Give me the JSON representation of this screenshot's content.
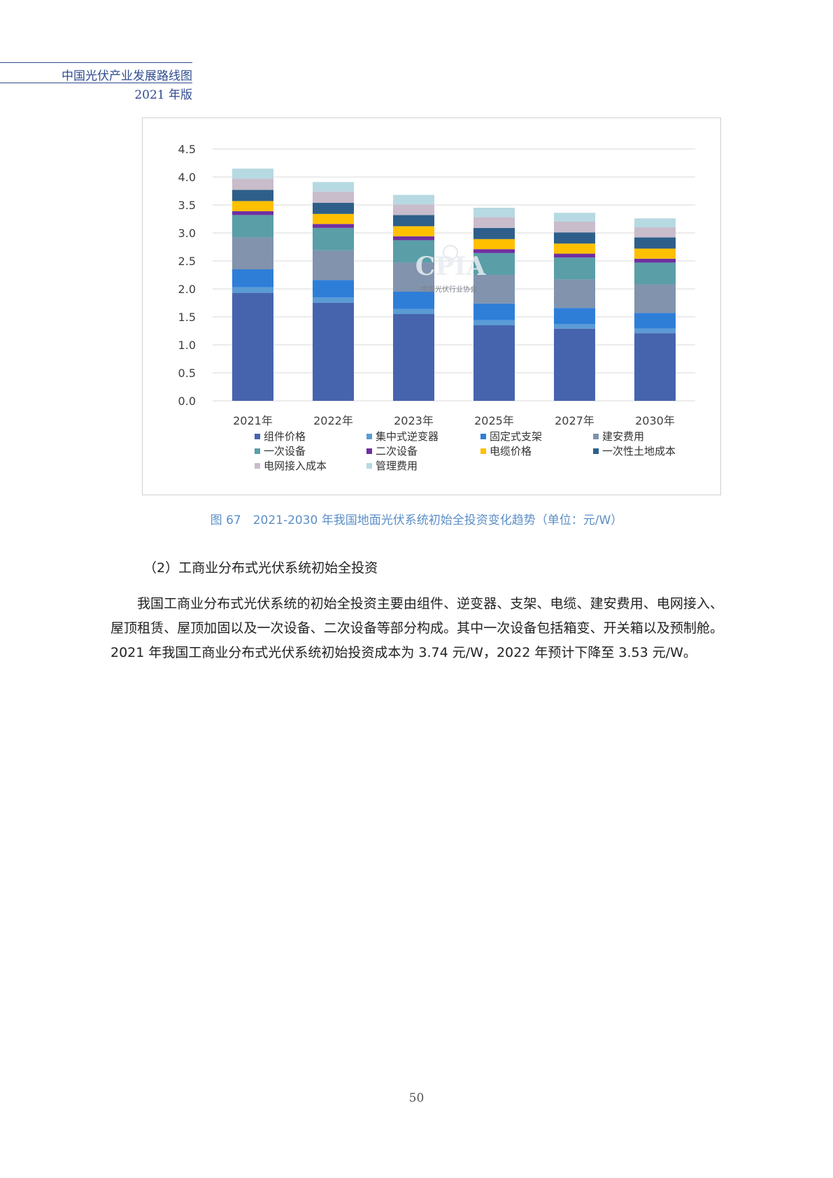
{
  "header": {
    "title": "中国光伏产业发展路线图",
    "edition": "2021 年版"
  },
  "chart_data": {
    "type": "bar",
    "stacked": true,
    "categories": [
      "2021年",
      "2022年",
      "2023年",
      "2025年",
      "2027年",
      "2030年"
    ],
    "ylim": [
      0,
      4.5
    ],
    "yticks": [
      "0.0",
      "0.5",
      "1.0",
      "1.5",
      "2.0",
      "2.5",
      "3.0",
      "3.5",
      "4.0",
      "4.5"
    ],
    "grid": true,
    "legend_position": "bottom",
    "series": [
      {
        "name": "组件价格",
        "color": "#4664ad",
        "values": [
          1.93,
          1.75,
          1.55,
          1.35,
          1.29,
          1.21
        ]
      },
      {
        "name": "集中式逆变器",
        "color": "#5b9bd5",
        "values": [
          0.1,
          0.1,
          0.09,
          0.09,
          0.08,
          0.08
        ]
      },
      {
        "name": "固定式支架",
        "color": "#2e7ed8",
        "values": [
          0.32,
          0.31,
          0.31,
          0.3,
          0.29,
          0.28
        ]
      },
      {
        "name": "建安费用",
        "color": "#8193ad",
        "values": [
          0.57,
          0.53,
          0.52,
          0.51,
          0.51,
          0.51
        ]
      },
      {
        "name": "一次设备",
        "color": "#5a9ea8",
        "values": [
          0.4,
          0.4,
          0.4,
          0.39,
          0.39,
          0.39
        ]
      },
      {
        "name": "二次设备",
        "color": "#7030a0",
        "values": [
          0.07,
          0.07,
          0.07,
          0.07,
          0.07,
          0.07
        ]
      },
      {
        "name": "电缆价格",
        "color": "#ffc000",
        "values": [
          0.18,
          0.18,
          0.18,
          0.18,
          0.18,
          0.18
        ]
      },
      {
        "name": "一次性土地成本",
        "color": "#2e5f8a",
        "values": [
          0.2,
          0.2,
          0.2,
          0.2,
          0.2,
          0.2
        ]
      },
      {
        "name": "电网接入成本",
        "color": "#c9bccb",
        "values": [
          0.2,
          0.2,
          0.19,
          0.19,
          0.19,
          0.18
        ]
      },
      {
        "name": "管理费用",
        "color": "#b7d9e2",
        "values": [
          0.18,
          0.17,
          0.17,
          0.17,
          0.16,
          0.16
        ]
      }
    ],
    "watermark": {
      "text": "CPIA",
      "subtext": "中国光伏行业协会"
    }
  },
  "caption": "图 67　2021-2030 年我国地面光伏系统初始全投资变化趋势（单位：元/W）",
  "section_heading": "（2）工商业分布式光伏系统初始全投资",
  "paragraph": "我国工商业分布式光伏系统的初始全投资主要由组件、逆变器、支架、电缆、建安费用、电网接入、屋顶租赁、屋顶加固以及一次设备、二次设备等部分构成。其中一次设备包括箱变、开关箱以及预制舱。2021 年我国工商业分布式光伏系统初始投资成本为 3.74 元/W，2022 年预计下降至 3.53 元/W。",
  "page_number": "50"
}
